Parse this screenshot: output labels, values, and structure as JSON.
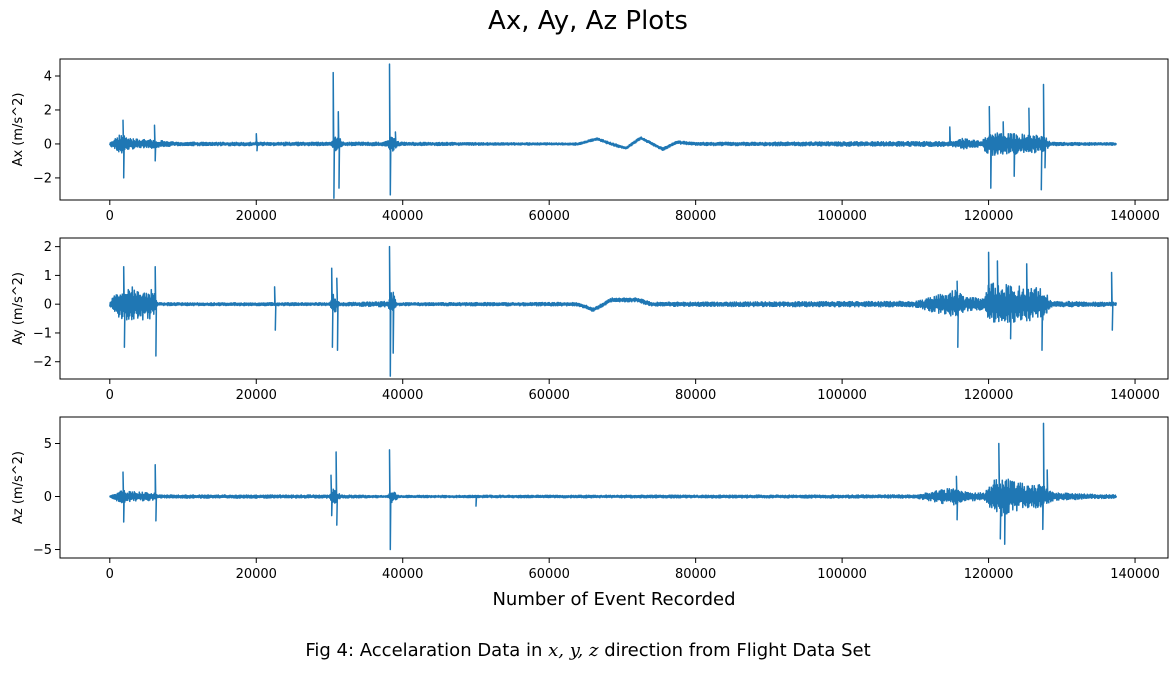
{
  "figure": {
    "title": "Ax, Ay, Az Plots",
    "caption_prefix": "Fig 4: Accelaration Data in ",
    "caption_math": "x, y, z",
    "caption_suffix": " direction from Flight Data Set",
    "line_color": "#1f77b4"
  },
  "chart_data": [
    {
      "type": "line",
      "ylabel": "Ax (m/s^2)",
      "xlabel": "",
      "xlim": [
        -6800,
        144500
      ],
      "ylim": [
        -3.3,
        5.0
      ],
      "xticks": [
        0,
        20000,
        40000,
        60000,
        80000,
        100000,
        120000,
        140000
      ],
      "yticks": [
        -2,
        0,
        2,
        4
      ],
      "x_max": 137500,
      "noise_profile": [
        [
          0,
          0.1
        ],
        [
          1500,
          0.6
        ],
        [
          3000,
          0.3
        ],
        [
          6000,
          0.25
        ],
        [
          9000,
          0.1
        ],
        [
          30000,
          0.1
        ],
        [
          31000,
          0.5
        ],
        [
          32000,
          0.1
        ],
        [
          37500,
          0.1
        ],
        [
          38500,
          0.5
        ],
        [
          39500,
          0.1
        ],
        [
          60000,
          0.06
        ],
        [
          115000,
          0.15
        ],
        [
          116500,
          0.35
        ],
        [
          119000,
          0.15
        ],
        [
          120000,
          0.7
        ],
        [
          127500,
          0.5
        ],
        [
          128500,
          0.1
        ],
        [
          137500,
          0.07
        ]
      ],
      "drift": [
        [
          0,
          0
        ],
        [
          64000,
          0
        ],
        [
          66500,
          0.3
        ],
        [
          68500,
          0
        ],
        [
          70500,
          -0.25
        ],
        [
          72500,
          0.35
        ],
        [
          75500,
          -0.3
        ],
        [
          77500,
          0.1
        ],
        [
          80000,
          0
        ]
      ],
      "spikes": [
        [
          1800,
          1.4
        ],
        [
          1900,
          -2.0
        ],
        [
          6100,
          1.1
        ],
        [
          6200,
          -1.0
        ],
        [
          20000,
          0.6
        ],
        [
          20100,
          -0.4
        ],
        [
          30500,
          4.2
        ],
        [
          30600,
          -3.2
        ],
        [
          31200,
          1.9
        ],
        [
          31300,
          -2.6
        ],
        [
          38200,
          4.7
        ],
        [
          38300,
          -3.0
        ],
        [
          39000,
          0.7
        ],
        [
          114700,
          1.0
        ],
        [
          120100,
          2.2
        ],
        [
          120300,
          -2.6
        ],
        [
          122000,
          1.3
        ],
        [
          123500,
          -1.9
        ],
        [
          125500,
          2.1
        ],
        [
          127200,
          -2.7
        ],
        [
          127500,
          3.5
        ],
        [
          127700,
          -1.4
        ]
      ]
    },
    {
      "type": "line",
      "ylabel": "Ay (m/s^2)",
      "xlabel": "",
      "xlim": [
        -6800,
        144500
      ],
      "ylim": [
        -2.6,
        2.3
      ],
      "xticks": [
        0,
        20000,
        40000,
        60000,
        80000,
        100000,
        120000,
        140000
      ],
      "yticks": [
        -2,
        -1,
        0,
        1,
        2
      ],
      "x_max": 137500,
      "noise_profile": [
        [
          0,
          0.1
        ],
        [
          1200,
          0.5
        ],
        [
          3000,
          0.6
        ],
        [
          6000,
          0.5
        ],
        [
          6500,
          0.05
        ],
        [
          30000,
          0.05
        ],
        [
          30500,
          0.4
        ],
        [
          31500,
          0.05
        ],
        [
          38000,
          0.1
        ],
        [
          38600,
          0.5
        ],
        [
          39200,
          0.05
        ],
        [
          60000,
          0.06
        ],
        [
          110000,
          0.1
        ],
        [
          115500,
          0.5
        ],
        [
          116800,
          0.25
        ],
        [
          119500,
          0.2
        ],
        [
          120000,
          0.75
        ],
        [
          127500,
          0.55
        ],
        [
          128500,
          0.1
        ],
        [
          137500,
          0.07
        ]
      ],
      "drift": [
        [
          0,
          0
        ],
        [
          64000,
          0
        ],
        [
          66000,
          -0.2
        ],
        [
          68500,
          0.15
        ],
        [
          72000,
          0.15
        ],
        [
          74000,
          0
        ],
        [
          80000,
          0
        ]
      ],
      "spikes": [
        [
          1900,
          1.3
        ],
        [
          2000,
          -1.5
        ],
        [
          6200,
          1.3
        ],
        [
          6300,
          -1.8
        ],
        [
          22500,
          0.6
        ],
        [
          22600,
          -0.9
        ],
        [
          30300,
          1.25
        ],
        [
          30400,
          -1.5
        ],
        [
          31000,
          0.9
        ],
        [
          31100,
          -1.6
        ],
        [
          38200,
          2.0
        ],
        [
          38300,
          -2.5
        ],
        [
          38700,
          -1.7
        ],
        [
          115700,
          0.8
        ],
        [
          115800,
          -1.5
        ],
        [
          120000,
          1.8
        ],
        [
          121200,
          1.5
        ],
        [
          123000,
          -1.2
        ],
        [
          125200,
          1.4
        ],
        [
          127300,
          -1.6
        ],
        [
          136800,
          1.1
        ],
        [
          136900,
          -0.9
        ]
      ]
    },
    {
      "type": "line",
      "ylabel": "Az (m/s^2)",
      "xlabel": "Number of Event Recorded",
      "xlim": [
        -6800,
        144500
      ],
      "ylim": [
        -5.8,
        7.5
      ],
      "xticks": [
        0,
        20000,
        40000,
        60000,
        80000,
        100000,
        120000,
        140000
      ],
      "yticks": [
        -5,
        0,
        5
      ],
      "x_max": 137500,
      "noise_profile": [
        [
          0,
          0.1
        ],
        [
          1500,
          0.6
        ],
        [
          3000,
          0.45
        ],
        [
          6000,
          0.4
        ],
        [
          6500,
          0.15
        ],
        [
          30000,
          0.15
        ],
        [
          30500,
          0.8
        ],
        [
          31500,
          0.15
        ],
        [
          38000,
          0.1
        ],
        [
          38500,
          0.6
        ],
        [
          39500,
          0.1
        ],
        [
          60000,
          0.12
        ],
        [
          110000,
          0.15
        ],
        [
          115500,
          0.9
        ],
        [
          117000,
          0.4
        ],
        [
          119500,
          0.4
        ],
        [
          120500,
          1.5
        ],
        [
          122000,
          2.0
        ],
        [
          124000,
          1.3
        ],
        [
          127500,
          1.1
        ],
        [
          129000,
          0.35
        ],
        [
          137500,
          0.15
        ]
      ],
      "drift": [
        [
          0,
          0
        ],
        [
          80000,
          0
        ]
      ],
      "spikes": [
        [
          1800,
          2.3
        ],
        [
          1900,
          -2.4
        ],
        [
          6200,
          3.0
        ],
        [
          6300,
          -2.3
        ],
        [
          30200,
          2.0
        ],
        [
          30300,
          -1.8
        ],
        [
          30900,
          4.2
        ],
        [
          31000,
          -2.7
        ],
        [
          38200,
          4.4
        ],
        [
          38300,
          -5.0
        ],
        [
          50000,
          -0.9
        ],
        [
          115600,
          1.9
        ],
        [
          115700,
          -2.2
        ],
        [
          121400,
          5.0
        ],
        [
          121600,
          -4.0
        ],
        [
          122200,
          -4.5
        ],
        [
          127400,
          -3.1
        ],
        [
          127500,
          6.9
        ],
        [
          128000,
          2.5
        ]
      ]
    }
  ]
}
